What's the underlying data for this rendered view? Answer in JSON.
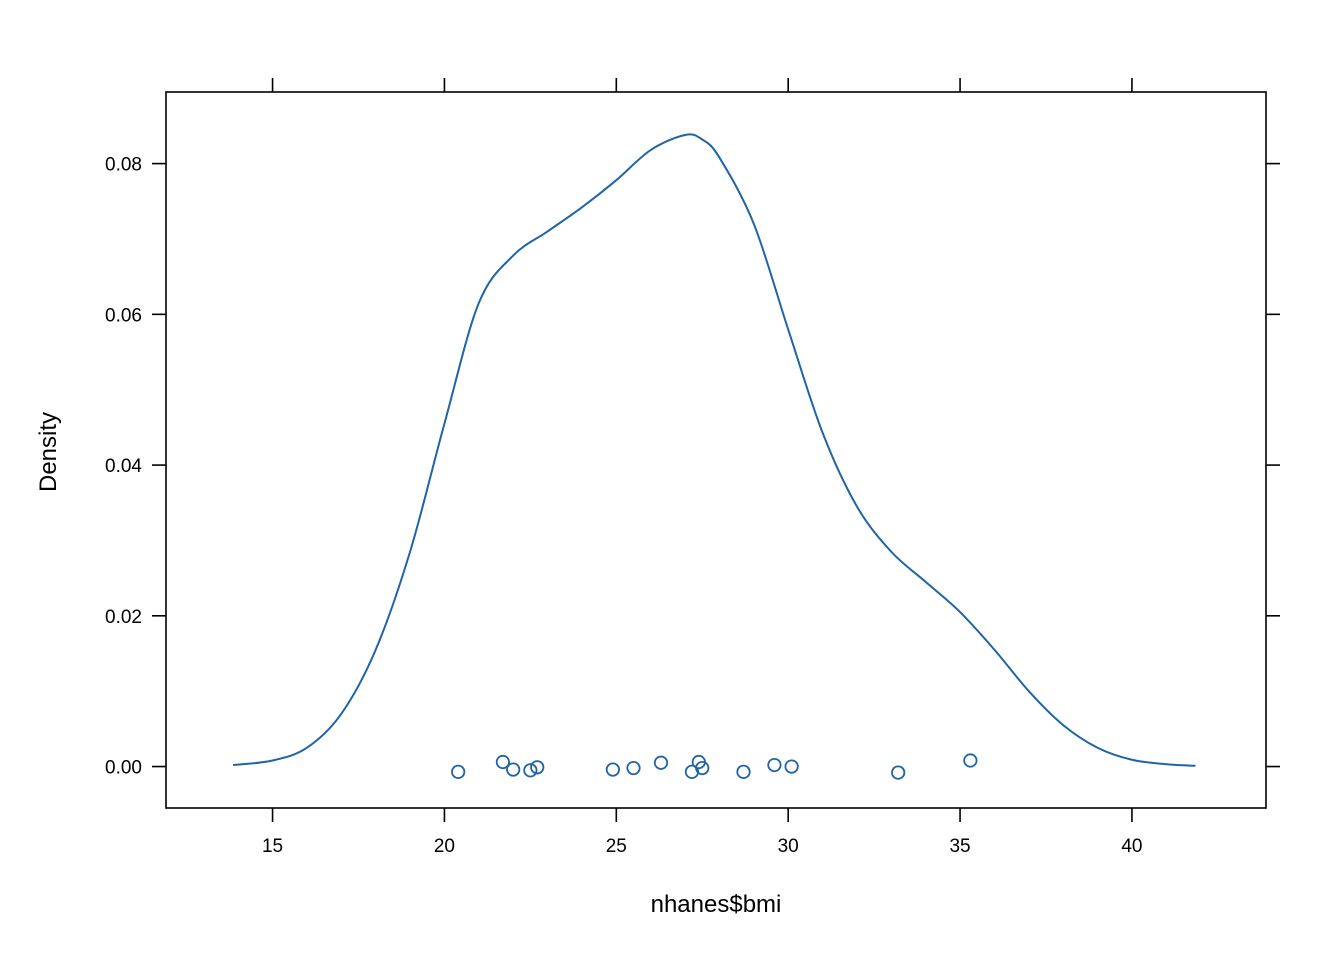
{
  "chart_data": {
    "type": "line",
    "xlabel": "nhanes$bmi",
    "ylabel": "Density",
    "xlim": [
      11.9,
      43.9
    ],
    "ylim": [
      -0.0055,
      0.0895
    ],
    "x_ticks": [
      15,
      20,
      25,
      30,
      35,
      40
    ],
    "x_tick_labels": [
      "15",
      "20",
      "25",
      "30",
      "35",
      "40"
    ],
    "y_ticks": [
      0.0,
      0.02,
      0.04,
      0.06,
      0.08
    ],
    "y_tick_labels": [
      "0.00",
      "0.02",
      "0.04",
      "0.06",
      "0.08"
    ],
    "grid": false,
    "color": "#1f64a8",
    "density_curve": {
      "x": [
        13.85,
        15.0,
        16.0,
        17.0,
        18.0,
        19.0,
        20.0,
        21.0,
        22.0,
        23.0,
        24.0,
        25.0,
        26.0,
        27.0,
        27.5,
        28.0,
        29.0,
        30.0,
        31.0,
        32.0,
        33.0,
        34.0,
        35.0,
        36.0,
        37.0,
        38.0,
        39.0,
        40.0,
        41.0,
        41.85
      ],
      "y": [
        0.0002,
        0.0008,
        0.0025,
        0.007,
        0.0155,
        0.0285,
        0.0455,
        0.0615,
        0.0678,
        0.071,
        0.0742,
        0.0778,
        0.0818,
        0.0838,
        0.0832,
        0.0808,
        0.072,
        0.058,
        0.0443,
        0.0345,
        0.0285,
        0.0245,
        0.0205,
        0.0155,
        0.01,
        0.0055,
        0.0025,
        0.0009,
        0.0003,
        0.0001
      ]
    },
    "points": {
      "x": [
        20.4,
        21.7,
        22.0,
        22.5,
        22.7,
        24.9,
        25.5,
        26.3,
        27.2,
        27.4,
        27.5,
        28.7,
        29.6,
        30.1,
        33.2,
        35.3
      ],
      "y": [
        -0.0007,
        0.0006,
        -0.0004,
        -0.0005,
        -0.0001,
        -0.0004,
        -0.0002,
        0.0005,
        -0.0007,
        0.0006,
        -0.0002,
        -0.0007,
        0.0002,
        0.0,
        -0.0008,
        0.0008
      ]
    }
  }
}
